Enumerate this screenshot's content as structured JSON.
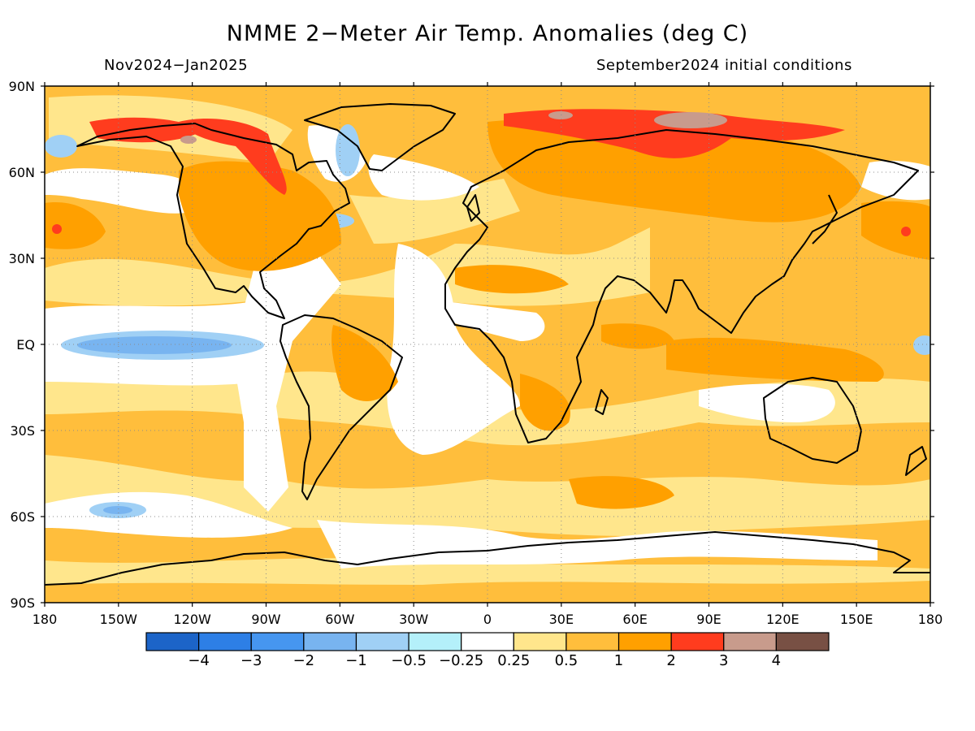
{
  "title": "NMME 2−Meter Air Temp. Anomalies (deg C)",
  "period": "Nov2024−Jan2025",
  "initial_conditions": "September2024 initial conditions",
  "lat_labels": [
    "90N",
    "60N",
    "30N",
    "EQ",
    "30S",
    "60S",
    "90S"
  ],
  "lon_labels": [
    "180",
    "150W",
    "120W",
    "90W",
    "60W",
    "30W",
    "0",
    "30E",
    "60E",
    "90E",
    "120E",
    "150E",
    "180"
  ],
  "colorbar": {
    "labels": [
      "−4",
      "−3",
      "−2",
      "−1",
      "−0.5",
      "−0.25",
      "0.25",
      "0.5",
      "1",
      "2",
      "3",
      "4"
    ],
    "colors": [
      "#1c64c8",
      "#2d7fe6",
      "#4696f0",
      "#78b4f0",
      "#a0d0f5",
      "#b4f0fa",
      "#ffffff",
      "#ffe68c",
      "#ffbe3c",
      "#ffa000",
      "#ff3c1e",
      "#c89b8c",
      "#785044"
    ]
  },
  "colors": {
    "ocean_background": "#ffbe3c",
    "neutral": "#ffffff",
    "cold_weak": "#a0d0f5",
    "warm_moderate": "#ffa000",
    "warm_strong": "#ff3c1e"
  }
}
